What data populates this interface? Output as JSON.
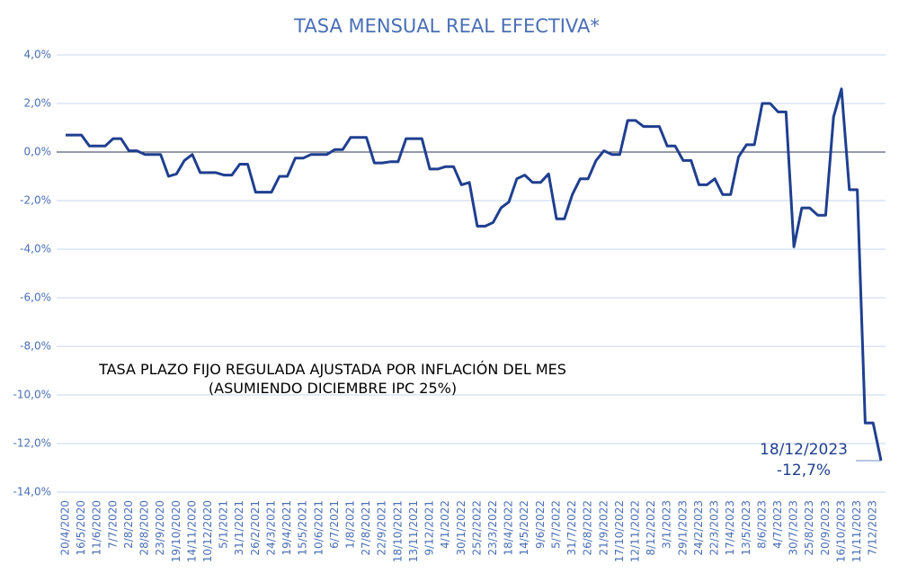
{
  "chart_data": {
    "type": "line",
    "title": "TASA MENSUAL REAL EFECTIVA*",
    "annotation": "TASA PLAZO FIJO REGULADA AJUSTADA POR INFLACIÓN DEL MES (ASUMIENDO DICIEMBRE IPC 25%)",
    "end_label": {
      "date": "18/12/2023",
      "value": "-12,7%"
    },
    "categories": [
      "20/4/2020",
      null,
      "16/5/2020",
      null,
      "11/6/2020",
      null,
      "7/7/2020",
      null,
      "2/8/2020",
      null,
      "28/8/2020",
      null,
      "23/9/2020",
      null,
      "19/10/2020",
      null,
      "14/11/2020",
      null,
      "10/12/2020",
      null,
      "5/1/2021",
      null,
      "31/1/2021",
      null,
      "26/2/2021",
      null,
      "24/3/2021",
      null,
      "19/4/2021",
      null,
      "15/5/2021",
      null,
      "10/6/2021",
      null,
      "6/7/2021",
      null,
      "1/8/2021",
      null,
      "27/8/2021",
      null,
      "22/9/2021",
      null,
      "18/10/2021",
      null,
      "13/11/2021",
      null,
      "9/12/2021",
      null,
      "4/1/2022",
      null,
      "30/1/2022",
      null,
      "25/2/2022",
      null,
      "23/3/2022",
      null,
      "18/4/2022",
      null,
      "14/5/2022",
      null,
      "9/6/2022",
      null,
      "5/7/2022",
      null,
      "31/7/2022",
      null,
      "26/8/2022",
      null,
      "21/9/2022",
      null,
      "17/10/2022",
      null,
      "12/11/2022",
      null,
      "8/12/2022",
      null,
      "3/1/2023",
      null,
      "29/1/2023",
      null,
      "24/2/2023",
      null,
      "22/3/2023",
      null,
      "17/4/2023",
      null,
      "13/5/2023",
      null,
      "8/6/2023",
      null,
      "4/7/2023",
      null,
      "30/7/2023",
      null,
      "25/8/2023",
      null,
      "20/9/2023",
      null,
      "16/10/2023",
      null,
      "11/11/2023",
      null,
      "7/12/2023",
      null
    ],
    "series": [
      {
        "color": "#1f3f8f",
        "values": [
          0.7,
          0.7,
          0.7,
          0.25,
          0.25,
          0.25,
          0.55,
          0.55,
          0.05,
          0.05,
          -0.1,
          -0.1,
          -0.1,
          -1.0,
          -0.9,
          -0.35,
          -0.1,
          -0.85,
          -0.85,
          -0.85,
          -0.95,
          -0.95,
          -0.5,
          -0.5,
          -1.65,
          -1.65,
          -1.65,
          -1.0,
          -1.0,
          -0.25,
          -0.25,
          -0.1,
          -0.1,
          -0.1,
          0.1,
          0.1,
          0.6,
          0.6,
          0.6,
          -0.45,
          -0.45,
          -0.4,
          -0.4,
          0.55,
          0.55,
          0.55,
          -0.7,
          -0.7,
          -0.6,
          -0.6,
          -1.35,
          -1.25,
          -3.05,
          -3.05,
          -2.9,
          -2.3,
          -2.05,
          -1.1,
          -0.95,
          -1.25,
          -1.25,
          -0.9,
          -2.75,
          -2.75,
          -1.75,
          -1.1,
          -1.1,
          -0.35,
          0.05,
          -0.1,
          -0.1,
          1.3,
          1.3,
          1.05,
          1.05,
          1.05,
          0.25,
          0.25,
          -0.35,
          -0.35,
          -1.35,
          -1.35,
          -1.1,
          -1.75,
          -1.75,
          -0.2,
          0.3,
          0.3,
          2.0,
          2.0,
          1.65,
          1.65,
          -3.9,
          -2.3,
          -2.3,
          -2.6,
          -2.6,
          1.45,
          2.6,
          -1.55,
          -1.55,
          -11.15,
          -11.15,
          -12.7
        ]
      }
    ],
    "ylim": [
      -14,
      4
    ],
    "yticks": [
      {
        "value": -14,
        "label": "-14,0%"
      },
      {
        "value": -12,
        "label": "-12,0%"
      },
      {
        "value": -10,
        "label": "-10,0%"
      },
      {
        "value": -8,
        "label": "-8,0%"
      },
      {
        "value": -6,
        "label": "-6,0%"
      },
      {
        "value": -4,
        "label": "-4,0%"
      },
      {
        "value": -2,
        "label": "-2,0%"
      },
      {
        "value": 0,
        "label": "0,0%"
      },
      {
        "value": 2,
        "label": "2,0%"
      },
      {
        "value": 4,
        "label": "4,0%"
      }
    ],
    "grid": true
  }
}
